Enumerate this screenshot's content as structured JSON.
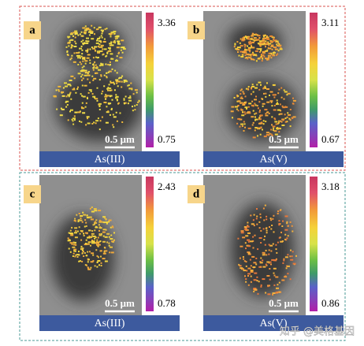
{
  "panels": [
    {
      "label": "a",
      "max": "3.36",
      "min": "0.75",
      "scale_bar": "0.5 μm",
      "caption": "As(III)"
    },
    {
      "label": "b",
      "max": "3.11",
      "min": "0.67",
      "scale_bar": "0.5 μm",
      "caption": "As(V)"
    },
    {
      "label": "c",
      "max": "2.43",
      "min": "0.78",
      "scale_bar": "0.5 μm",
      "caption": "As(III)"
    },
    {
      "label": "d",
      "max": "3.18",
      "min": "0.86",
      "scale_bar": "0.5 μm",
      "caption": "As(V)"
    }
  ],
  "watermark": "知乎 @美格基因"
}
